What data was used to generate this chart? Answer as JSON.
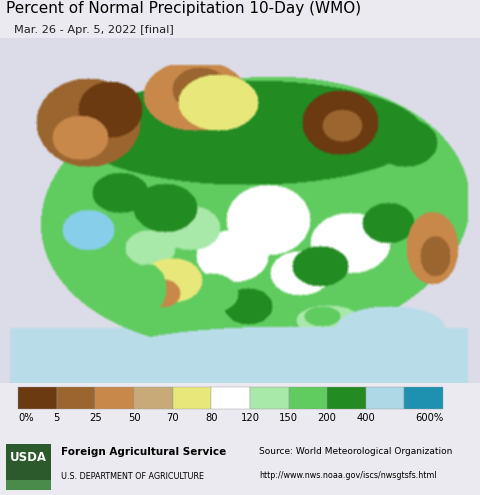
{
  "title": "Percent of Normal Precipitation 10-Day (WMO)",
  "subtitle": "Mar. 26 - Apr. 5, 2022 [final]",
  "title_fontsize": 11.0,
  "subtitle_fontsize": 8.2,
  "colorbar_labels": [
    "0%",
    "5",
    "25",
    "50",
    "70",
    "80",
    "120",
    "150",
    "200",
    "400",
    "600%"
  ],
  "colorbar_colors": [
    "#6b3a10",
    "#9b6530",
    "#c8884a",
    "#c8aa78",
    "#e8e87a",
    "#ffffff",
    "#a8e8a8",
    "#60cc60",
    "#228b22",
    "#add8e6",
    "#1e90b0"
  ],
  "background_color": "#eaeaf0",
  "map_surround_color": "#dcdce8",
  "water_color": "#b8dce8",
  "legend_bg": "#eaeaf0",
  "footer_bg": "#d8d8e4",
  "usda_green": "#2d5a2d",
  "usda_text": "Foreign Agricultural Service",
  "usda_sub": "U.S. DEPARTMENT OF AGRICULTURE",
  "source_line1": "Source: World Meteorological Organization",
  "source_line2": "http://www.nws.noaa.gov/iscs/nwsgtsfs.html",
  "fig_width": 4.8,
  "fig_height": 4.95,
  "dpi": 100
}
